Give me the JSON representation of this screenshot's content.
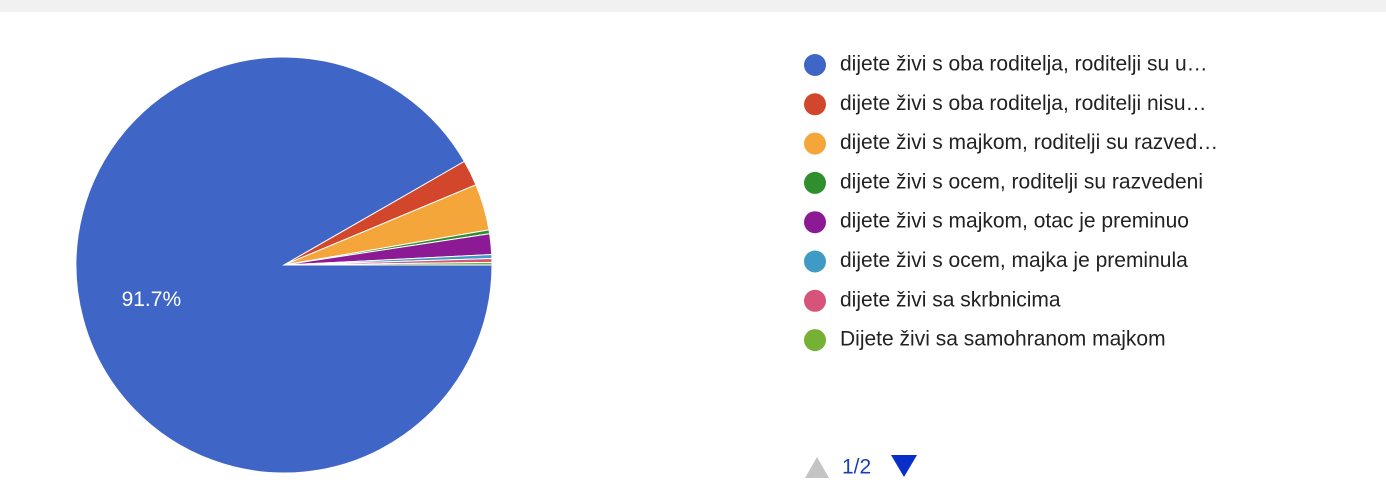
{
  "chart_data": {
    "type": "pie",
    "categories": [
      "dijete živi s oba roditelja, roditelji su u…",
      "dijete živi s oba roditelja, roditelji nisu…",
      "dijete živi s majkom, roditelji su razved…",
      "dijete živi s ocem, roditelji su razvedeni",
      "dijete živi s majkom, otac je preminuo",
      "dijete živi s ocem, majka je preminula",
      "dijete živi sa skrbnicima",
      "Dijete živi sa samohranom majkom"
    ],
    "values": [
      91.7,
      2.0,
      3.6,
      0.3,
      1.6,
      0.3,
      0.3,
      0.2
    ],
    "value_labels": [
      "91.7%",
      null,
      null,
      null,
      null,
      null,
      null,
      null
    ],
    "colors": [
      "#3f65c6",
      "#d2472b",
      "#f4a63b",
      "#2f8f2f",
      "#8b1a94",
      "#3f9bc5",
      "#d8537a",
      "#76b035"
    ],
    "legend": "right",
    "page_indicator": "1/2"
  }
}
